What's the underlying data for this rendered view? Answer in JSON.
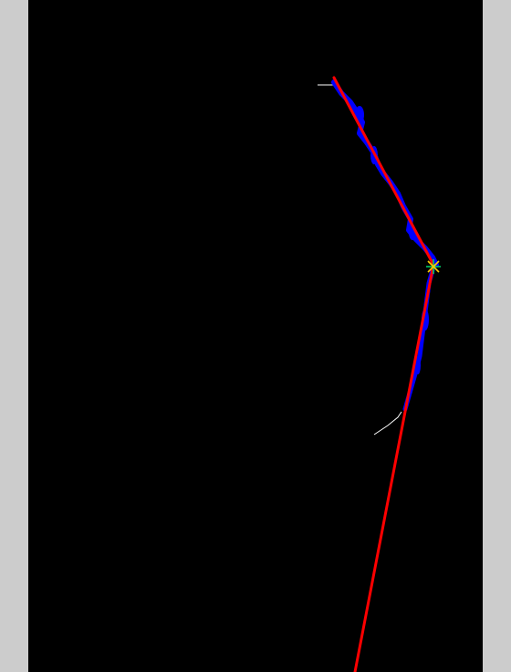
{
  "colors": {
    "side_margin": "#cccccc",
    "image_background": "#000000",
    "detected_edge": "#0000ff",
    "fitted_line": "#ff0000",
    "candidate_trace": "#ffffff",
    "vertex_marker_a": "#00cc66",
    "vertex_marker_b": "#ffcc00"
  },
  "icons": {
    "vertex_marker": "asterisk-marker"
  }
}
